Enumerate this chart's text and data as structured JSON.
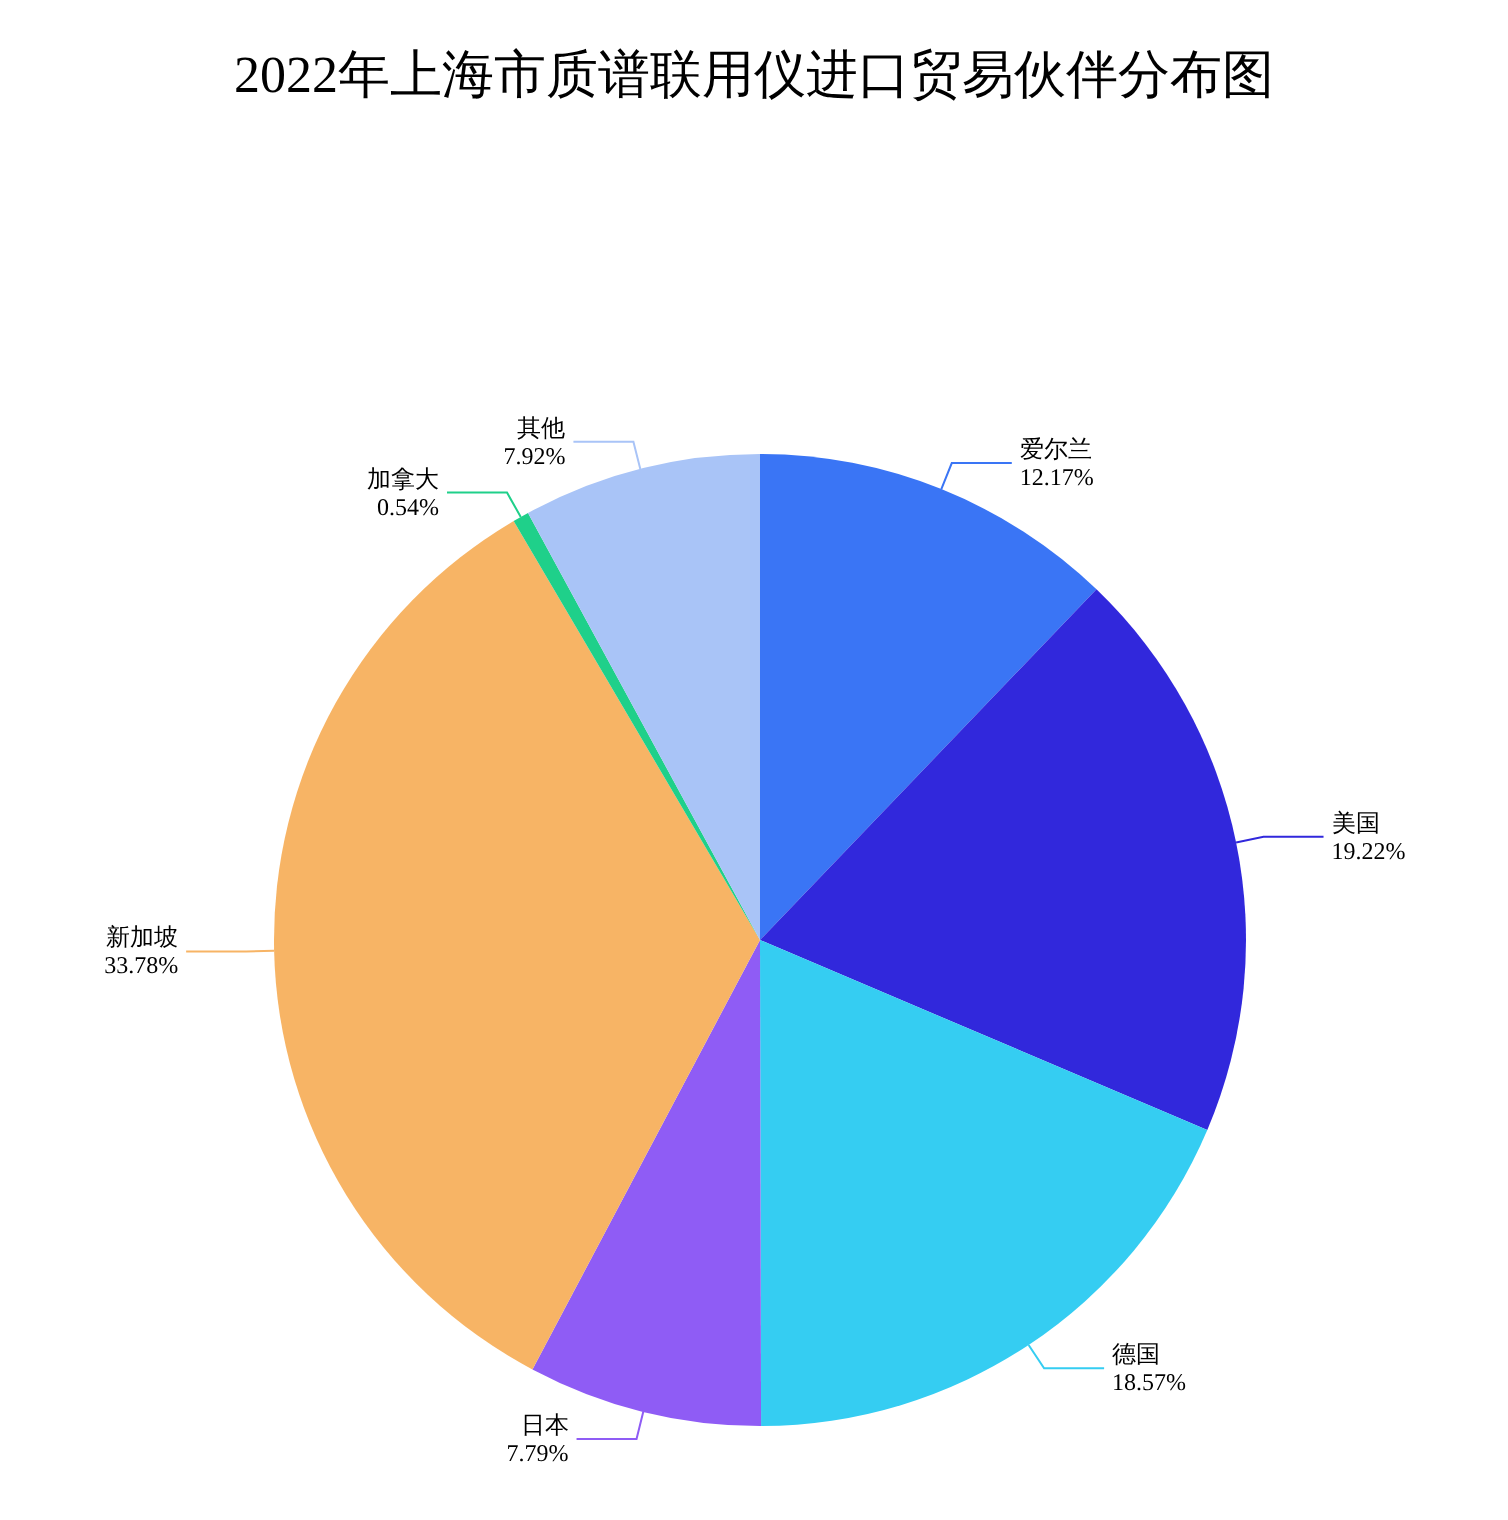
{
  "chart_data": {
    "type": "pie",
    "title": "2022年上海市质谱联用仪进口贸易伙伴分布图",
    "categories": [
      "爱尔兰",
      "美国",
      "德国",
      "日本",
      "新加坡",
      "加拿大",
      "其他"
    ],
    "values": [
      12.17,
      19.22,
      18.57,
      7.79,
      33.78,
      0.54,
      7.92
    ],
    "value_labels": [
      "12.17%",
      "19.22%",
      "18.57%",
      "7.79%",
      "33.78%",
      "0.54%",
      "7.92%"
    ],
    "colors": [
      "#3a75f5",
      "#3128dc",
      "#35cdf2",
      "#8f5cf5",
      "#f7b465",
      "#1fd08a",
      "#a9c4f7"
    ]
  }
}
